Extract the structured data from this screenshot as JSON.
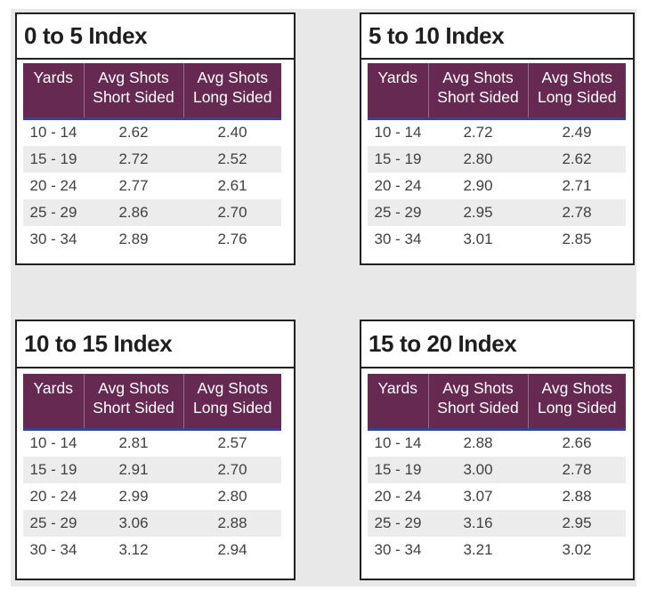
{
  "page": {
    "background": "#ffffff",
    "canvas_background": "#e8e8e8"
  },
  "colors": {
    "visual_border": "#202020",
    "header_background": "#662a52",
    "header_text": "#ffffff",
    "header_accent_line": "#32429e",
    "row_stripe": "#ececec",
    "row_text": "#404040",
    "title_text": "#1e1e1e"
  },
  "columns": {
    "yards": "Yards",
    "short_line1": "Avg Shots",
    "short_line2": "Short Sided",
    "long_line1": "Avg Shots",
    "long_line2": "Long Sided"
  },
  "tables": [
    {
      "title": "0 to 5 Index",
      "rows": [
        [
          "10 - 14",
          "2.62",
          "2.40"
        ],
        [
          "15 - 19",
          "2.72",
          "2.52"
        ],
        [
          "20 - 24",
          "2.77",
          "2.61"
        ],
        [
          "25 - 29",
          "2.86",
          "2.70"
        ],
        [
          "30 - 34",
          "2.89",
          "2.76"
        ]
      ]
    },
    {
      "title": "5 to 10 Index",
      "rows": [
        [
          "10 - 14",
          "2.72",
          "2.49"
        ],
        [
          "15 - 19",
          "2.80",
          "2.62"
        ],
        [
          "20 - 24",
          "2.90",
          "2.71"
        ],
        [
          "25 - 29",
          "2.95",
          "2.78"
        ],
        [
          "30 - 34",
          "3.01",
          "2.85"
        ]
      ]
    },
    {
      "title": "10 to 15 Index",
      "rows": [
        [
          "10 - 14",
          "2.81",
          "2.57"
        ],
        [
          "15 - 19",
          "2.91",
          "2.70"
        ],
        [
          "20 - 24",
          "2.99",
          "2.80"
        ],
        [
          "25 - 29",
          "3.06",
          "2.88"
        ],
        [
          "30 - 34",
          "3.12",
          "2.94"
        ]
      ]
    },
    {
      "title": "15 to 20 Index",
      "rows": [
        [
          "10 - 14",
          "2.88",
          "2.66"
        ],
        [
          "15 - 19",
          "3.00",
          "2.78"
        ],
        [
          "20 - 24",
          "3.07",
          "2.88"
        ],
        [
          "25 - 29",
          "3.16",
          "2.95"
        ],
        [
          "30 - 34",
          "3.21",
          "3.02"
        ]
      ]
    }
  ],
  "chart_data": [
    {
      "type": "table",
      "title": "0 to 5 Index",
      "columns": [
        "Yards",
        "Avg Shots Short Sided",
        "Avg Shots Long Sided"
      ],
      "yards_bins": [
        "10 - 14",
        "15 - 19",
        "20 - 24",
        "25 - 29",
        "30 - 34"
      ],
      "avg_shots_short_sided": [
        2.62,
        2.72,
        2.77,
        2.86,
        2.89
      ],
      "avg_shots_long_sided": [
        2.4,
        2.52,
        2.61,
        2.7,
        2.76
      ]
    },
    {
      "type": "table",
      "title": "5 to 10 Index",
      "columns": [
        "Yards",
        "Avg Shots Short Sided",
        "Avg Shots Long Sided"
      ],
      "yards_bins": [
        "10 - 14",
        "15 - 19",
        "20 - 24",
        "25 - 29",
        "30 - 34"
      ],
      "avg_shots_short_sided": [
        2.72,
        2.8,
        2.9,
        2.95,
        3.01
      ],
      "avg_shots_long_sided": [
        2.49,
        2.62,
        2.71,
        2.78,
        2.85
      ]
    },
    {
      "type": "table",
      "title": "10 to 15 Index",
      "columns": [
        "Yards",
        "Avg Shots Short Sided",
        "Avg Shots Long Sided"
      ],
      "yards_bins": [
        "10 - 14",
        "15 - 19",
        "20 - 24",
        "25 - 29",
        "30 - 34"
      ],
      "avg_shots_short_sided": [
        2.81,
        2.91,
        2.99,
        3.06,
        3.12
      ],
      "avg_shots_long_sided": [
        2.57,
        2.7,
        2.8,
        2.88,
        2.94
      ]
    },
    {
      "type": "table",
      "title": "15 to 20 Index",
      "columns": [
        "Yards",
        "Avg Shots Short Sided",
        "Avg Shots Long Sided"
      ],
      "yards_bins": [
        "10 - 14",
        "15 - 19",
        "20 - 24",
        "25 - 29",
        "30 - 34"
      ],
      "avg_shots_short_sided": [
        2.88,
        3.0,
        3.07,
        3.16,
        3.21
      ],
      "avg_shots_long_sided": [
        2.66,
        2.78,
        2.88,
        2.95,
        3.02
      ]
    }
  ]
}
